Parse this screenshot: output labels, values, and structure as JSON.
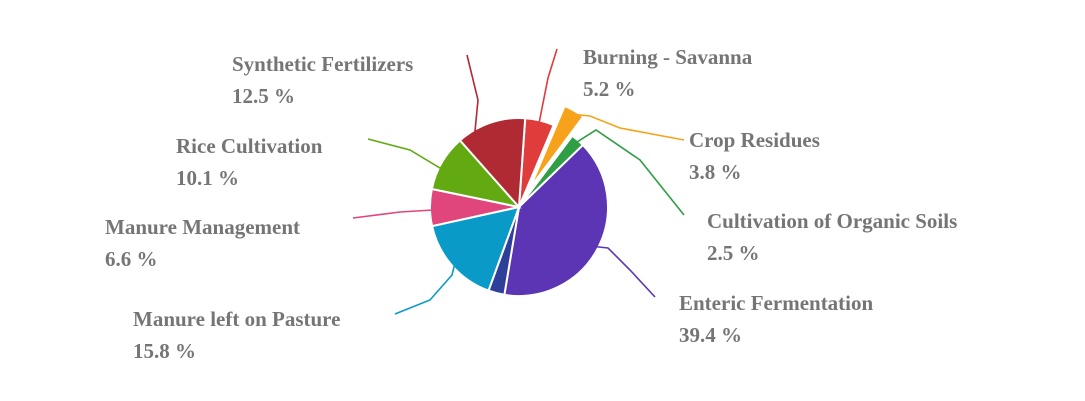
{
  "chart_data": {
    "type": "pie",
    "title": "",
    "value_suffix": " %",
    "slices": [
      {
        "label": "Burning - Savanna",
        "value": 5.2,
        "color": "#e03c3c"
      },
      {
        "label": "Crop Residues",
        "value": 3.8,
        "color": "#f7a21b",
        "exploded": true
      },
      {
        "label": "Cultivation of Organic Soils",
        "value": 2.5,
        "color": "#2f9e44"
      },
      {
        "label": "Enteric Fermentation",
        "value": 39.4,
        "color": "#5c35b5"
      },
      {
        "label": "",
        "value": 2.9,
        "color": "#2e3f9a"
      },
      {
        "label": "Manure left on Pasture",
        "value": 15.8,
        "color": "#0a9ac8"
      },
      {
        "label": "Manure Management",
        "value": 6.6,
        "color": "#e0457b"
      },
      {
        "label": "Rice Cultivation",
        "value": 10.1,
        "color": "#63a912"
      },
      {
        "label": "Synthetic Fertilizers",
        "value": 12.5,
        "color": "#b02a34"
      }
    ],
    "value_labels": {
      "Burning - Savanna": "5.2 %",
      "Crop Residues": "3.8 %",
      "Cultivation of Organic Soils": "2.5 %",
      "Enteric Fermentation": "39.4 %",
      "Manure left on Pasture": "15.8 %",
      "Manure Management": "6.6 %",
      "Rice Cultivation": "10.1 %",
      "Synthetic Fertilizers": "12.5 %"
    }
  }
}
